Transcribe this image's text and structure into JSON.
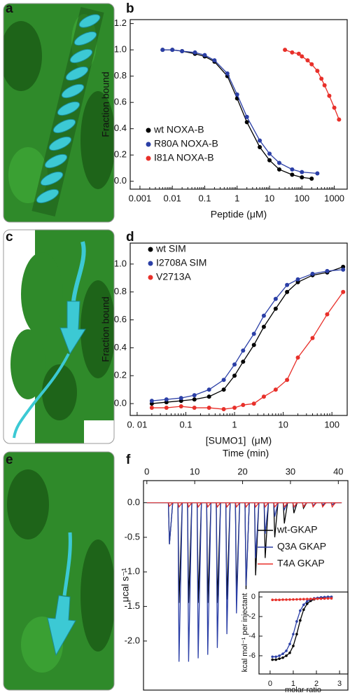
{
  "image_panels": [
    {
      "label": "a"
    },
    {
      "label": "c"
    },
    {
      "label": "e"
    }
  ],
  "chart_data": [
    {
      "type": "scatter",
      "panel": "b",
      "x_label": "Peptide (μM)",
      "y_label": "Fraction bound",
      "xscale": "log",
      "xlim": [
        0.0005,
        2500
      ],
      "ylim": [
        -0.06,
        1.23
      ],
      "xticks": [
        0.001,
        0.01,
        0.1,
        1,
        10,
        100,
        1000
      ],
      "yticks": [
        {
          "value": 0,
          "label": "0.0"
        },
        0.2,
        0.4,
        0.6,
        0.8,
        {
          "value": 1,
          "label": "1.0"
        },
        1.2
      ],
      "legend": "lower left",
      "series": [
        {
          "name": "wt NOXA-B",
          "color": "#000000",
          "x": [
            0.005,
            0.01,
            0.02,
            0.05,
            0.1,
            0.2,
            0.5,
            1,
            2,
            5,
            10,
            20,
            50,
            100,
            200
          ],
          "values": [
            1.0,
            1.0,
            0.99,
            0.97,
            0.95,
            0.91,
            0.8,
            0.63,
            0.45,
            0.26,
            0.16,
            0.09,
            0.05,
            0.03,
            0.02
          ]
        },
        {
          "name": "R80A NOXA-B",
          "color": "#2b3fa6",
          "x": [
            0.005,
            0.01,
            0.02,
            0.05,
            0.1,
            0.2,
            0.5,
            1,
            2,
            5,
            10,
            20,
            50,
            100,
            300
          ],
          "values": [
            1.0,
            1.0,
            0.99,
            0.98,
            0.96,
            0.92,
            0.82,
            0.66,
            0.49,
            0.31,
            0.21,
            0.14,
            0.09,
            0.07,
            0.06
          ]
        },
        {
          "name": "I81A NOXA-B",
          "color": "#e8302a",
          "x": [
            30,
            50,
            80,
            100,
            150,
            200,
            300,
            400,
            500,
            700,
            1000,
            1400
          ],
          "values": [
            1.0,
            0.98,
            0.97,
            0.95,
            0.92,
            0.89,
            0.84,
            0.78,
            0.73,
            0.65,
            0.56,
            0.47
          ]
        }
      ]
    },
    {
      "type": "scatter",
      "panel": "d",
      "x_label": "[SUMO1]  (μM)",
      "y_label": "Fraction bound",
      "xscale": "log",
      "xlim": [
        0.0072,
        206
      ],
      "ylim": [
        -0.085,
        1.15
      ],
      "xticks": [
        {
          "value": 0.01,
          "label": "0. 01"
        },
        0.1,
        1,
        10,
        100
      ],
      "yticks": [
        {
          "value": 0,
          "label": "0.0"
        },
        0.2,
        0.4,
        0.6,
        0.8,
        {
          "value": 1,
          "label": "1.0"
        }
      ],
      "legend": "upper left",
      "series": [
        {
          "name": "wt SIM",
          "color": "#000000",
          "x": [
            0.02,
            0.04,
            0.08,
            0.15,
            0.3,
            0.6,
            1,
            1.5,
            2.5,
            4,
            7,
            12,
            20,
            40,
            80,
            170
          ],
          "values": [
            0.0,
            0.01,
            0.02,
            0.03,
            0.05,
            0.1,
            0.2,
            0.3,
            0.42,
            0.55,
            0.68,
            0.8,
            0.87,
            0.92,
            0.94,
            0.98
          ]
        },
        {
          "name": "I2708A SIM",
          "color": "#2b3fa6",
          "x": [
            0.02,
            0.04,
            0.08,
            0.15,
            0.3,
            0.6,
            1,
            1.5,
            2.5,
            4,
            7,
            12,
            20,
            40,
            80,
            170
          ],
          "values": [
            0.02,
            0.03,
            0.04,
            0.06,
            0.1,
            0.17,
            0.28,
            0.38,
            0.5,
            0.63,
            0.75,
            0.85,
            0.89,
            0.93,
            0.95,
            0.96
          ]
        },
        {
          "name": "V2713A",
          "color": "#e8302a",
          "x": [
            0.02,
            0.04,
            0.08,
            0.15,
            0.3,
            0.6,
            1,
            1.5,
            2.5,
            4,
            7,
            12,
            20,
            40,
            80,
            170
          ],
          "values": [
            -0.03,
            -0.03,
            -0.02,
            -0.03,
            -0.03,
            -0.04,
            -0.03,
            -0.01,
            0.0,
            0.05,
            0.1,
            0.17,
            0.33,
            0.47,
            0.64,
            0.8
          ]
        }
      ]
    },
    {
      "type": "itc",
      "panel": "f",
      "x_label": "Time (min)",
      "y_label": "μcal s⁻¹",
      "xlim": [
        -0.7,
        42
      ],
      "ylim": [
        -2.71,
        0.32
      ],
      "xticks": [
        0,
        10,
        20,
        30,
        40
      ],
      "yticks": [
        {
          "value": 0,
          "label": "0.0"
        },
        -0.5,
        {
          "value": -1,
          "label": "-1.0"
        },
        -1.5,
        {
          "value": -2,
          "label": "-2.0"
        }
      ],
      "legend": "upper right",
      "x": [
        4.5,
        6.5,
        8.5,
        10.5,
        12.5,
        14.5,
        16.5,
        18.5,
        20.5,
        22.5,
        24.5,
        26.5,
        28.5,
        30.5,
        32.5,
        34.5,
        36.5,
        38.5
      ],
      "series": [
        {
          "name": "wt-GKAP",
          "color": "#000000",
          "values": [
            -0.6,
            -1.45,
            -1.45,
            -1.45,
            -1.45,
            -1.45,
            -1.4,
            -1.35,
            -1.25,
            -1.05,
            -0.8,
            -0.5,
            -0.3,
            -0.15,
            -0.08,
            -0.05,
            -0.04,
            -0.03
          ]
        },
        {
          "name": "Q3A GKAP",
          "color": "#2b3fa6",
          "values": [
            -0.6,
            -2.3,
            -2.3,
            -2.25,
            -2.2,
            -2.1,
            -1.9,
            -1.6,
            -1.2,
            -0.8,
            -0.45,
            -0.2,
            -0.1,
            -0.07,
            -0.05,
            -0.04,
            -0.03,
            -0.03
          ]
        },
        {
          "name": "T4A GKAP",
          "color": "#e8302a",
          "values": [
            -0.05,
            -0.06,
            -0.06,
            -0.06,
            -0.06,
            -0.06,
            -0.06,
            -0.06,
            -0.06,
            -0.06,
            -0.06,
            -0.06,
            -0.06,
            -0.06,
            -0.06,
            -0.06,
            -0.06,
            -0.06
          ]
        }
      ]
    },
    {
      "type": "scatter",
      "x_label": "molar ratio",
      "y_label": "kcal mol⁻¹ per injectant",
      "xlim": [
        -0.48,
        3.36
      ],
      "ylim": [
        -7.86,
        0.5
      ],
      "xticks": [
        0,
        1,
        2,
        3
      ],
      "yticks": [
        0,
        -2,
        -4,
        -6
      ],
      "series": [
        {
          "color": "#000000",
          "x": [
            0.1,
            0.25,
            0.4,
            0.55,
            0.7,
            0.85,
            1.0,
            1.15,
            1.3,
            1.45,
            1.6,
            1.75,
            1.9,
            2.05,
            2.2,
            2.35,
            2.5,
            2.65
          ],
          "values": [
            -6.4,
            -6.4,
            -6.3,
            -6.2,
            -6.0,
            -5.7,
            -5.0,
            -3.8,
            -2.4,
            -1.3,
            -0.7,
            -0.4,
            -0.25,
            -0.15,
            -0.1,
            -0.05,
            0,
            0
          ]
        },
        {
          "color": "#2b3fa6",
          "x": [
            0.1,
            0.25,
            0.4,
            0.55,
            0.7,
            0.85,
            1.0,
            1.15,
            1.3,
            1.45,
            1.6,
            1.75,
            1.9,
            2.05,
            2.2,
            2.35,
            2.5,
            2.65
          ],
          "values": [
            -6.1,
            -6.1,
            -6.0,
            -5.8,
            -5.5,
            -4.8,
            -3.8,
            -2.5,
            -1.4,
            -0.8,
            -0.45,
            -0.25,
            -0.15,
            -0.1,
            -0.05,
            -0.02,
            0,
            0
          ]
        },
        {
          "color": "#e8302a",
          "x": [
            0.1,
            0.25,
            0.4,
            0.55,
            0.7,
            0.85,
            1.0,
            1.15,
            1.3,
            1.45,
            1.6,
            1.75,
            1.9,
            2.05,
            2.2,
            2.35,
            2.5,
            2.65
          ],
          "values": [
            -0.3,
            -0.3,
            -0.3,
            -0.28,
            -0.28,
            -0.27,
            -0.26,
            -0.25,
            -0.24,
            -0.23,
            -0.22,
            -0.21,
            -0.2,
            -0.19,
            -0.18,
            -0.17,
            -0.16,
            -0.15
          ]
        }
      ]
    }
  ]
}
